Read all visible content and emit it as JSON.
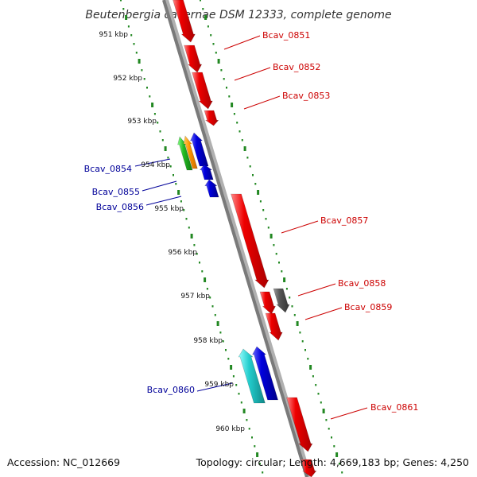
{
  "title": "Beutenbergia cavernae DSM 12333, complete genome",
  "accession": "Accession: NC_012669",
  "summary": "Topology: circular; Length: 4,669,183 bp; Genes: 4,250",
  "kbp_labels": [
    "951 kbp",
    "952 kbp",
    "953 kbp",
    "954 kbp",
    "955 kbp",
    "956 kbp",
    "957 kbp",
    "958 kbp",
    "959 kbp",
    "960 kbp"
  ],
  "gene_labels": {
    "bcav_0851": "Bcav_0851",
    "bcav_0852": "Bcav_0852",
    "bcav_0853": "Bcav_0853",
    "bcav_0854": "Bcav_0854",
    "bcav_0855": "Bcav_0855",
    "bcav_0856": "Bcav_0856",
    "bcav_0857": "Bcav_0857",
    "bcav_0858": "Bcav_0858",
    "bcav_0859": "Bcav_0859",
    "bcav_0860": "Bcav_0860",
    "bcav_0861": "Bcav_0861"
  },
  "colors": {
    "forward_gene": "#ee0000",
    "reverse_gene": "#0000cc",
    "pseudo_gene": "#555555",
    "tick": "#228822",
    "backbone": "#888888",
    "forward_label": "#cc0000",
    "reverse_label": "#000099"
  }
}
